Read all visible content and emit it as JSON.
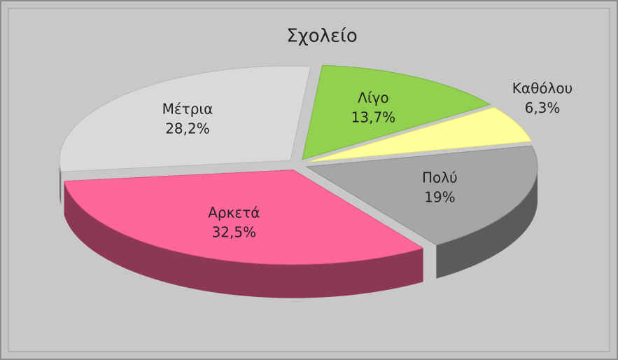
{
  "chart_data": {
    "type": "pie3d",
    "title": "Σχολείο",
    "categories": [
      "Λίγο",
      "Καθόλου",
      "Πολύ",
      "Αρκετά",
      "Μέτρια"
    ],
    "values": [
      13.7,
      6.3,
      19,
      32.5,
      28.2
    ],
    "value_labels": [
      "13,7%",
      "6,3%",
      "19%",
      "32,5%",
      "28,2%"
    ],
    "colors": [
      "#92d050",
      "#ffff99",
      "#a6a6a6",
      "#ff6699",
      "#d9d9d9"
    ]
  }
}
